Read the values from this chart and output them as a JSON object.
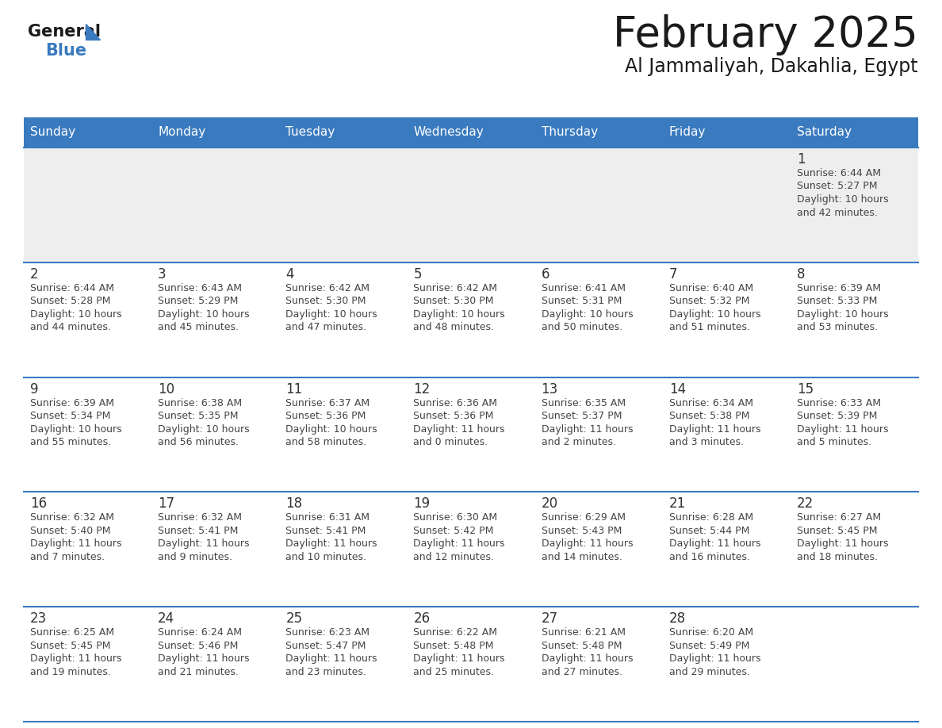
{
  "title": "February 2025",
  "subtitle": "Al Jammaliyah, Dakahlia, Egypt",
  "header_color": "#3a7abf",
  "header_text_color": "#ffffff",
  "days_of_week": [
    "Sunday",
    "Monday",
    "Tuesday",
    "Wednesday",
    "Thursday",
    "Friday",
    "Saturday"
  ],
  "row1_bg": "#eeeeee",
  "row_bg": "#ffffff",
  "divider_color": "#3a7abf",
  "date_color": "#333333",
  "text_color": "#444444",
  "calendar_data": [
    [
      null,
      null,
      null,
      null,
      null,
      null,
      {
        "day": "1",
        "sunrise": "6:44 AM",
        "sunset": "5:27 PM",
        "daylight_line1": "Daylight: 10 hours",
        "daylight_line2": "and 42 minutes."
      }
    ],
    [
      {
        "day": "2",
        "sunrise": "6:44 AM",
        "sunset": "5:28 PM",
        "daylight_line1": "Daylight: 10 hours",
        "daylight_line2": "and 44 minutes."
      },
      {
        "day": "3",
        "sunrise": "6:43 AM",
        "sunset": "5:29 PM",
        "daylight_line1": "Daylight: 10 hours",
        "daylight_line2": "and 45 minutes."
      },
      {
        "day": "4",
        "sunrise": "6:42 AM",
        "sunset": "5:30 PM",
        "daylight_line1": "Daylight: 10 hours",
        "daylight_line2": "and 47 minutes."
      },
      {
        "day": "5",
        "sunrise": "6:42 AM",
        "sunset": "5:30 PM",
        "daylight_line1": "Daylight: 10 hours",
        "daylight_line2": "and 48 minutes."
      },
      {
        "day": "6",
        "sunrise": "6:41 AM",
        "sunset": "5:31 PM",
        "daylight_line1": "Daylight: 10 hours",
        "daylight_line2": "and 50 minutes."
      },
      {
        "day": "7",
        "sunrise": "6:40 AM",
        "sunset": "5:32 PM",
        "daylight_line1": "Daylight: 10 hours",
        "daylight_line2": "and 51 minutes."
      },
      {
        "day": "8",
        "sunrise": "6:39 AM",
        "sunset": "5:33 PM",
        "daylight_line1": "Daylight: 10 hours",
        "daylight_line2": "and 53 minutes."
      }
    ],
    [
      {
        "day": "9",
        "sunrise": "6:39 AM",
        "sunset": "5:34 PM",
        "daylight_line1": "Daylight: 10 hours",
        "daylight_line2": "and 55 minutes."
      },
      {
        "day": "10",
        "sunrise": "6:38 AM",
        "sunset": "5:35 PM",
        "daylight_line1": "Daylight: 10 hours",
        "daylight_line2": "and 56 minutes."
      },
      {
        "day": "11",
        "sunrise": "6:37 AM",
        "sunset": "5:36 PM",
        "daylight_line1": "Daylight: 10 hours",
        "daylight_line2": "and 58 minutes."
      },
      {
        "day": "12",
        "sunrise": "6:36 AM",
        "sunset": "5:36 PM",
        "daylight_line1": "Daylight: 11 hours",
        "daylight_line2": "and 0 minutes."
      },
      {
        "day": "13",
        "sunrise": "6:35 AM",
        "sunset": "5:37 PM",
        "daylight_line1": "Daylight: 11 hours",
        "daylight_line2": "and 2 minutes."
      },
      {
        "day": "14",
        "sunrise": "6:34 AM",
        "sunset": "5:38 PM",
        "daylight_line1": "Daylight: 11 hours",
        "daylight_line2": "and 3 minutes."
      },
      {
        "day": "15",
        "sunrise": "6:33 AM",
        "sunset": "5:39 PM",
        "daylight_line1": "Daylight: 11 hours",
        "daylight_line2": "and 5 minutes."
      }
    ],
    [
      {
        "day": "16",
        "sunrise": "6:32 AM",
        "sunset": "5:40 PM",
        "daylight_line1": "Daylight: 11 hours",
        "daylight_line2": "and 7 minutes."
      },
      {
        "day": "17",
        "sunrise": "6:32 AM",
        "sunset": "5:41 PM",
        "daylight_line1": "Daylight: 11 hours",
        "daylight_line2": "and 9 minutes."
      },
      {
        "day": "18",
        "sunrise": "6:31 AM",
        "sunset": "5:41 PM",
        "daylight_line1": "Daylight: 11 hours",
        "daylight_line2": "and 10 minutes."
      },
      {
        "day": "19",
        "sunrise": "6:30 AM",
        "sunset": "5:42 PM",
        "daylight_line1": "Daylight: 11 hours",
        "daylight_line2": "and 12 minutes."
      },
      {
        "day": "20",
        "sunrise": "6:29 AM",
        "sunset": "5:43 PM",
        "daylight_line1": "Daylight: 11 hours",
        "daylight_line2": "and 14 minutes."
      },
      {
        "day": "21",
        "sunrise": "6:28 AM",
        "sunset": "5:44 PM",
        "daylight_line1": "Daylight: 11 hours",
        "daylight_line2": "and 16 minutes."
      },
      {
        "day": "22",
        "sunrise": "6:27 AM",
        "sunset": "5:45 PM",
        "daylight_line1": "Daylight: 11 hours",
        "daylight_line2": "and 18 minutes."
      }
    ],
    [
      {
        "day": "23",
        "sunrise": "6:25 AM",
        "sunset": "5:45 PM",
        "daylight_line1": "Daylight: 11 hours",
        "daylight_line2": "and 19 minutes."
      },
      {
        "day": "24",
        "sunrise": "6:24 AM",
        "sunset": "5:46 PM",
        "daylight_line1": "Daylight: 11 hours",
        "daylight_line2": "and 21 minutes."
      },
      {
        "day": "25",
        "sunrise": "6:23 AM",
        "sunset": "5:47 PM",
        "daylight_line1": "Daylight: 11 hours",
        "daylight_line2": "and 23 minutes."
      },
      {
        "day": "26",
        "sunrise": "6:22 AM",
        "sunset": "5:48 PM",
        "daylight_line1": "Daylight: 11 hours",
        "daylight_line2": "and 25 minutes."
      },
      {
        "day": "27",
        "sunrise": "6:21 AM",
        "sunset": "5:48 PM",
        "daylight_line1": "Daylight: 11 hours",
        "daylight_line2": "and 27 minutes."
      },
      {
        "day": "28",
        "sunrise": "6:20 AM",
        "sunset": "5:49 PM",
        "daylight_line1": "Daylight: 11 hours",
        "daylight_line2": "and 29 minutes."
      },
      null
    ]
  ]
}
